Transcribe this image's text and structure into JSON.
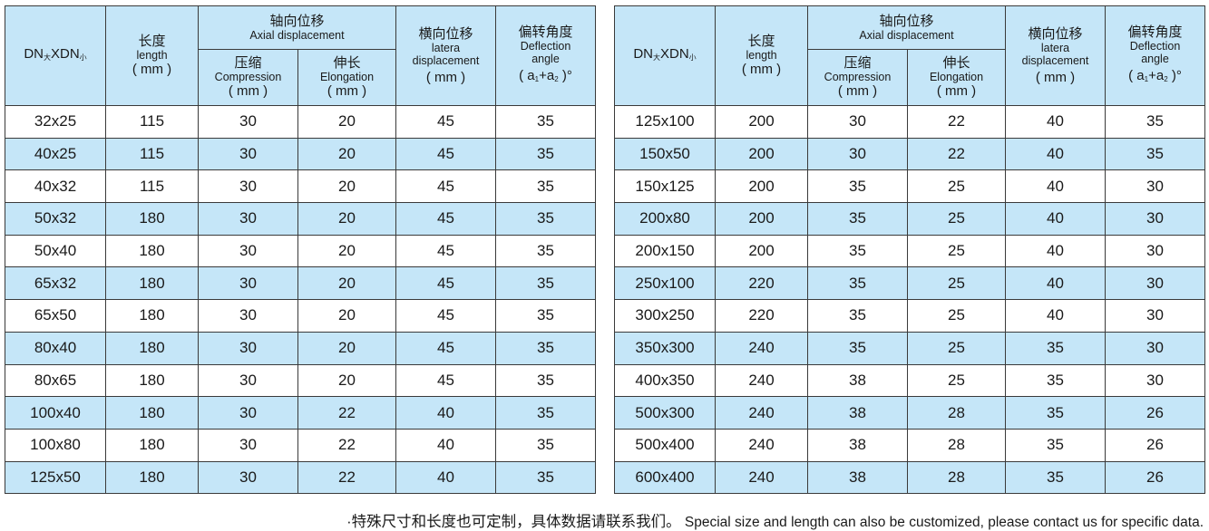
{
  "header": {
    "dn": "DNXDN",
    "dn_main": "DN",
    "dn_sub_big": "大",
    "dn_x": "XDN",
    "dn_sub_small": "小",
    "length_zh": "长度",
    "length_en": "length",
    "length_unit": "( mm )",
    "axial_zh": "轴向位移",
    "axial_en": "Axial displacement",
    "comp_zh": "压缩",
    "comp_en": "Compression",
    "comp_unit": "( mm )",
    "elong_zh": "伸长",
    "elong_en": "Elongation",
    "elong_unit": "( mm )",
    "lateral_zh": "横向位移",
    "lateral_en1": "latera",
    "lateral_en2": "displacement",
    "lateral_unit": "( mm )",
    "deflect_zh": "偏转角度",
    "deflect_en1": "Deflection",
    "deflect_en2": "angle",
    "deflect_unit_a1": "( a",
    "deflect_unit_s1": "1",
    "deflect_unit_plus": "+a",
    "deflect_unit_s2": "2",
    "deflect_unit_end": " )°"
  },
  "left_rows": [
    {
      "size": "32x25",
      "length": "115",
      "comp": "30",
      "elong": "20",
      "lateral": "45",
      "angle": "35"
    },
    {
      "size": "40x25",
      "length": "115",
      "comp": "30",
      "elong": "20",
      "lateral": "45",
      "angle": "35"
    },
    {
      "size": "40x32",
      "length": "115",
      "comp": "30",
      "elong": "20",
      "lateral": "45",
      "angle": "35"
    },
    {
      "size": "50x32",
      "length": "180",
      "comp": "30",
      "elong": "20",
      "lateral": "45",
      "angle": "35"
    },
    {
      "size": "50x40",
      "length": "180",
      "comp": "30",
      "elong": "20",
      "lateral": "45",
      "angle": "35"
    },
    {
      "size": "65x32",
      "length": "180",
      "comp": "30",
      "elong": "20",
      "lateral": "45",
      "angle": "35"
    },
    {
      "size": "65x50",
      "length": "180",
      "comp": "30",
      "elong": "20",
      "lateral": "45",
      "angle": "35"
    },
    {
      "size": "80x40",
      "length": "180",
      "comp": "30",
      "elong": "20",
      "lateral": "45",
      "angle": "35"
    },
    {
      "size": "80x65",
      "length": "180",
      "comp": "30",
      "elong": "20",
      "lateral": "45",
      "angle": "35"
    },
    {
      "size": "100x40",
      "length": "180",
      "comp": "30",
      "elong": "22",
      "lateral": "40",
      "angle": "35"
    },
    {
      "size": "100x80",
      "length": "180",
      "comp": "30",
      "elong": "22",
      "lateral": "40",
      "angle": "35"
    },
    {
      "size": "125x50",
      "length": "180",
      "comp": "30",
      "elong": "22",
      "lateral": "40",
      "angle": "35"
    }
  ],
  "right_rows": [
    {
      "size": "125x100",
      "length": "200",
      "comp": "30",
      "elong": "22",
      "lateral": "40",
      "angle": "35"
    },
    {
      "size": "150x50",
      "length": "200",
      "comp": "30",
      "elong": "22",
      "lateral": "40",
      "angle": "35"
    },
    {
      "size": "150x125",
      "length": "200",
      "comp": "35",
      "elong": "25",
      "lateral": "40",
      "angle": "30"
    },
    {
      "size": "200x80",
      "length": "200",
      "comp": "35",
      "elong": "25",
      "lateral": "40",
      "angle": "30"
    },
    {
      "size": "200x150",
      "length": "200",
      "comp": "35",
      "elong": "25",
      "lateral": "40",
      "angle": "30"
    },
    {
      "size": "250x100",
      "length": "220",
      "comp": "35",
      "elong": "25",
      "lateral": "40",
      "angle": "30"
    },
    {
      "size": "300x250",
      "length": "220",
      "comp": "35",
      "elong": "25",
      "lateral": "40",
      "angle": "30"
    },
    {
      "size": "350x300",
      "length": "240",
      "comp": "35",
      "elong": "25",
      "lateral": "35",
      "angle": "30"
    },
    {
      "size": "400x350",
      "length": "240",
      "comp": "38",
      "elong": "25",
      "lateral": "35",
      "angle": "30"
    },
    {
      "size": "500x300",
      "length": "240",
      "comp": "38",
      "elong": "28",
      "lateral": "35",
      "angle": "26"
    },
    {
      "size": "500x400",
      "length": "240",
      "comp": "38",
      "elong": "28",
      "lateral": "35",
      "angle": "26"
    },
    {
      "size": "600x400",
      "length": "240",
      "comp": "38",
      "elong": "28",
      "lateral": "35",
      "angle": "26"
    }
  ],
  "footer": {
    "zh": "·特殊尺寸和长度也可定制，具体数据请联系我们。",
    "en": "Special size and length can also be customized, please contact us for specific data."
  },
  "colors": {
    "header_bg": "#c5e6f8",
    "stripe_bg": "#c5e6f8",
    "border": "#3a3a3a"
  }
}
